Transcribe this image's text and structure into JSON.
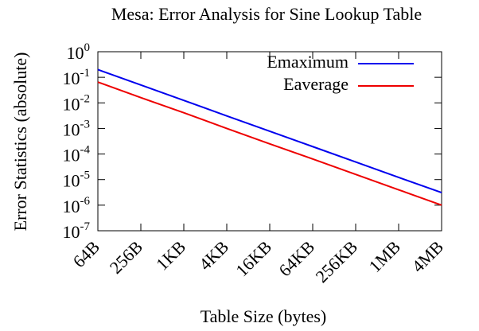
{
  "chart_data": {
    "type": "line",
    "title": "Mesa: Error Analysis for Sine Lookup Table",
    "x_label": "Table Size (bytes)",
    "y_label": "Error Statistics (absolute)",
    "categories": [
      "64B",
      "256B",
      "1KB",
      "4KB",
      "16KB",
      "64KB",
      "256KB",
      "1MB",
      "4MB"
    ],
    "series": [
      {
        "name": "Emaximum",
        "color": "#0000ee",
        "values": [
          0.2,
          0.05,
          0.0125,
          0.0031,
          0.00078,
          0.000195,
          4.9e-05,
          1.22e-05,
          3.1e-06
        ]
      },
      {
        "name": "Eaverage",
        "color": "#ee0000",
        "values": [
          0.065,
          0.016,
          0.0041,
          0.001,
          0.00025,
          6.4e-05,
          1.6e-05,
          4e-06,
          1e-06
        ]
      }
    ],
    "log_y": true,
    "ylim": [
      1e-07,
      1
    ],
    "yticks": [
      {
        "value": 1,
        "label": "10^0"
      },
      {
        "value": 0.1,
        "label": "10^-1"
      },
      {
        "value": 0.01,
        "label": "10^-2"
      },
      {
        "value": 0.001,
        "label": "10^-3"
      },
      {
        "value": 0.0001,
        "label": "10^-4"
      },
      {
        "value": 1e-05,
        "label": "10^-5"
      },
      {
        "value": 1e-06,
        "label": "10^-6"
      },
      {
        "value": 1e-07,
        "label": "10^-7"
      }
    ],
    "legend": "top-right"
  }
}
